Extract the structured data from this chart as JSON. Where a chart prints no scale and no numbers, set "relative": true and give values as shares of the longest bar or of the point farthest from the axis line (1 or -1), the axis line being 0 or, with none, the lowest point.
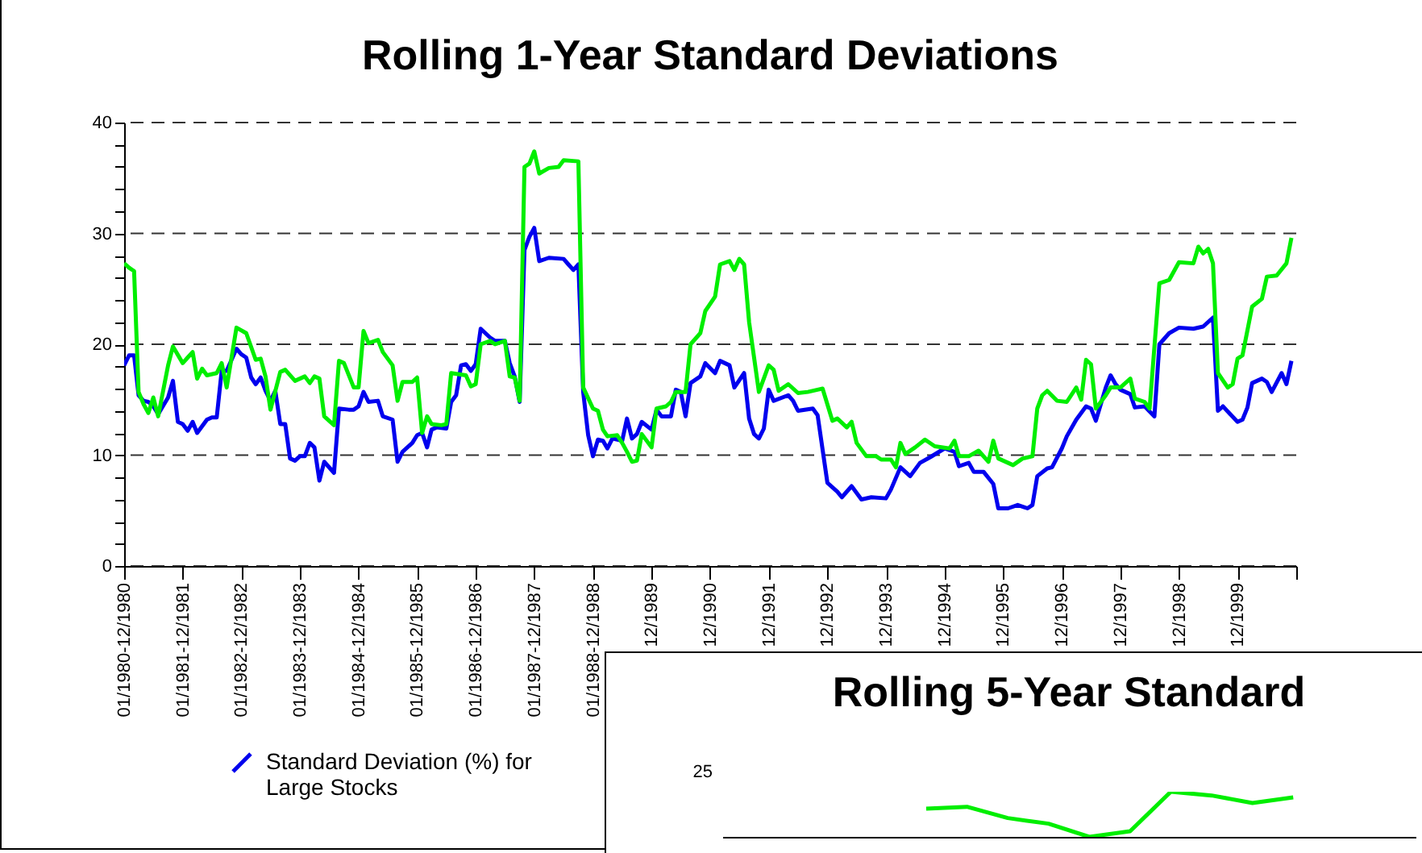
{
  "chart_data": [
    {
      "type": "line",
      "title": "Rolling 1-Year Standard Deviations",
      "xlim": [
        "1980-12",
        "2000-12"
      ],
      "xticks": [
        {
          "value": "1980-12",
          "label": "01/1980-12/1980"
        },
        {
          "value": "1981-12",
          "label": "01/1981-12/1981"
        },
        {
          "value": "1982-12",
          "label": "01/1982-12/1982"
        },
        {
          "value": "1983-12",
          "label": "01/1983-12/1983"
        },
        {
          "value": "1984-12",
          "label": "01/1984-12/1984"
        },
        {
          "value": "1985-12",
          "label": "01/1985-12/1985"
        },
        {
          "value": "1986-12",
          "label": "01/1986-12/1986"
        },
        {
          "value": "1987-12",
          "label": "01/1987-12/1987"
        },
        {
          "value": "1988-12",
          "label": "01/1988-12/1988"
        },
        {
          "value": "1989-12",
          "label": "12/1989"
        },
        {
          "value": "1990-12",
          "label": "12/1990"
        },
        {
          "value": "1991-12",
          "label": "12/1991"
        },
        {
          "value": "1992-12",
          "label": "12/1992"
        },
        {
          "value": "1993-12",
          "label": "12/1993"
        },
        {
          "value": "1994-12",
          "label": "12/1994"
        },
        {
          "value": "1995-12",
          "label": "12/1995"
        },
        {
          "value": "1996-12",
          "label": "12/1996"
        },
        {
          "value": "1997-12",
          "label": "12/1997"
        },
        {
          "value": "1998-12",
          "label": "12/1998"
        },
        {
          "value": "1999-12",
          "label": "12/1999"
        },
        {
          "value": "2000-12",
          "label": null
        }
      ],
      "ylim": [
        0,
        40
      ],
      "yticks": [
        0,
        {
          "value": 2,
          "label": null
        },
        {
          "value": 4,
          "label": null
        },
        {
          "value": 6,
          "label": null
        },
        {
          "value": 8,
          "label": null
        },
        10,
        {
          "value": 12,
          "label": null
        },
        {
          "value": 14,
          "label": null
        },
        {
          "value": 16,
          "label": null
        },
        {
          "value": 18,
          "label": null
        },
        20,
        {
          "value": 22,
          "label": null
        },
        {
          "value": 24,
          "label": null
        },
        {
          "value": 26,
          "label": null
        },
        {
          "value": 28,
          "label": null
        },
        30,
        {
          "value": 32,
          "label": null
        },
        {
          "value": 34,
          "label": null
        },
        {
          "value": 36,
          "label": null
        },
        {
          "value": 38,
          "label": null
        },
        40
      ],
      "grid": "y",
      "legend": "bottom left",
      "series": [
        {
          "name": "Standard Deviation (%) for Large Stocks",
          "color": "#0000ee",
          "x": [
            "1980-12",
            "1981-01",
            "1981-02",
            "1981-03",
            "1981-04",
            "1981-05",
            "1981-06",
            "1981-07",
            "1981-09",
            "1981-10",
            "1981-11",
            "1981-12",
            "1982-01",
            "1982-02",
            "1982-03",
            "1982-05",
            "1982-06",
            "1982-07",
            "1982-08",
            "1982-09",
            "1982-11",
            "1982-12",
            "1983-01",
            "1983-02",
            "1983-03",
            "1983-04",
            "1983-05",
            "1983-06",
            "1983-07",
            "1983-08",
            "1983-09",
            "1983-10",
            "1983-11",
            "1983-12",
            "1984-01",
            "1984-02",
            "1984-03",
            "1984-04",
            "1984-05",
            "1984-07",
            "1984-08",
            "1984-10",
            "1984-11",
            "1984-12",
            "1985-01",
            "1985-02",
            "1985-04",
            "1985-05",
            "1985-07",
            "1985-08",
            "1985-09",
            "1985-11",
            "1985-12",
            "1986-01",
            "1986-02",
            "1986-03",
            "1986-04",
            "1986-06",
            "1986-07",
            "1986-08",
            "1986-09",
            "1986-10",
            "1986-11",
            "1986-12",
            "1987-01",
            "1987-03",
            "1987-04",
            "1987-06",
            "1987-07",
            "1987-08",
            "1987-09",
            "1987-10",
            "1987-11",
            "1987-12",
            "1988-01",
            "1988-03",
            "1988-06",
            "1988-07",
            "1988-08",
            "1988-09",
            "1988-10",
            "1988-11",
            "1988-12",
            "1989-01",
            "1989-02",
            "1989-03",
            "1989-04",
            "1989-06",
            "1989-07",
            "1989-08",
            "1989-09",
            "1989-10",
            "1989-12",
            "1990-01",
            "1990-02",
            "1990-04",
            "1990-05",
            "1990-06",
            "1990-07",
            "1990-08",
            "1990-10",
            "1990-11",
            "1991-01",
            "1991-02",
            "1991-04",
            "1991-05",
            "1991-07",
            "1991-08",
            "1991-09",
            "1991-10",
            "1991-11",
            "1991-12",
            "1992-01",
            "1992-04",
            "1992-05",
            "1992-06",
            "1992-09",
            "1992-10",
            "1992-12",
            "1993-02",
            "1993-03",
            "1993-05",
            "1993-07",
            "1993-09",
            "1993-12",
            "1994-01",
            "1994-03",
            "1994-05",
            "1994-07",
            "1994-09",
            "1994-12",
            "1995-02",
            "1995-03",
            "1995-05",
            "1995-06",
            "1995-08",
            "1995-10",
            "1995-11",
            "1996-01",
            "1996-03",
            "1996-05",
            "1996-06",
            "1996-07",
            "1996-09",
            "1996-10",
            "1996-12",
            "1997-01",
            "1997-03",
            "1997-05",
            "1997-06",
            "1997-07",
            "1997-09",
            "1997-10",
            "1997-11",
            "1997-12",
            "1998-02",
            "1998-03",
            "1998-05",
            "1998-07",
            "1998-08",
            "1998-10",
            "1998-12",
            "1999-03",
            "1999-05",
            "1999-07",
            "1999-08",
            "1999-09",
            "1999-12",
            "2000-01",
            "2000-02",
            "2000-03",
            "2000-05",
            "2000-06",
            "2000-07",
            "2000-09",
            "2000-10",
            "2000-11"
          ],
          "values": [
            18.1,
            19.0,
            19.0,
            15.4,
            14.9,
            14.8,
            14.4,
            13.7,
            15.2,
            16.7,
            13.0,
            12.8,
            12.2,
            13.0,
            12.0,
            13.2,
            13.4,
            13.4,
            17.6,
            17.6,
            19.6,
            19.1,
            18.8,
            17.0,
            16.4,
            17.0,
            15.8,
            14.9,
            15.8,
            12.8,
            12.8,
            9.7,
            9.5,
            9.9,
            9.9,
            11.1,
            10.7,
            7.7,
            9.4,
            8.4,
            14.2,
            14.1,
            14.1,
            14.4,
            15.7,
            14.8,
            14.9,
            13.5,
            13.2,
            9.4,
            10.3,
            11.1,
            11.8,
            12.0,
            10.7,
            12.3,
            12.5,
            12.4,
            14.8,
            15.4,
            18.1,
            18.2,
            17.6,
            18.2,
            21.4,
            20.6,
            20.3,
            20.3,
            18.3,
            17.1,
            14.8,
            28.5,
            29.7,
            30.5,
            27.5,
            27.8,
            27.7,
            27.2,
            26.7,
            27.2,
            15.7,
            11.8,
            9.9,
            11.4,
            11.3,
            10.6,
            11.5,
            11.3,
            13.3,
            11.5,
            11.9,
            13.0,
            12.3,
            14.1,
            13.5,
            13.5,
            15.9,
            15.7,
            13.5,
            16.5,
            17.1,
            18.3,
            17.4,
            18.5,
            18.1,
            16.1,
            17.4,
            13.3,
            11.9,
            11.5,
            12.4,
            15.9,
            14.9,
            15.4,
            14.9,
            14.0,
            14.2,
            13.6,
            7.5,
            6.7,
            6.2,
            7.2,
            6.0,
            6.2,
            6.1,
            6.9,
            8.9,
            8.1,
            9.3,
            9.8,
            10.6,
            10.3,
            9.0,
            9.3,
            8.5,
            8.5,
            7.4,
            5.2,
            5.2,
            5.5,
            5.2,
            5.5,
            8.1,
            8.8,
            8.9,
            10.6,
            11.7,
            13.2,
            14.4,
            14.2,
            13.1,
            16.1,
            17.2,
            16.4,
            15.9,
            15.5,
            14.3,
            14.4,
            13.5,
            20.0,
            21.0,
            21.5,
            21.4,
            21.6,
            22.4,
            14.0,
            14.4,
            13.0,
            13.2,
            14.3,
            16.5,
            16.9,
            16.6,
            15.7,
            17.4,
            16.4,
            18.5
          ]
        },
        {
          "color": "#00ee00",
          "x": [
            "1980-12",
            "1981-01",
            "1981-02",
            "1981-03",
            "1981-04",
            "1981-05",
            "1981-06",
            "1981-07",
            "1981-09",
            "1981-10",
            "1981-12",
            "1982-01",
            "1982-02",
            "1982-03",
            "1982-04",
            "1982-05",
            "1982-07",
            "1982-08",
            "1982-09",
            "1982-11",
            "1983-01",
            "1983-03",
            "1983-04",
            "1983-05",
            "1983-06",
            "1983-08",
            "1983-09",
            "1983-11",
            "1984-01",
            "1984-02",
            "1984-03",
            "1984-04",
            "1984-05",
            "1984-07",
            "1984-08",
            "1984-09",
            "1984-11",
            "1984-12",
            "1985-01",
            "1985-02",
            "1985-04",
            "1985-05",
            "1985-07",
            "1985-08",
            "1985-09",
            "1985-11",
            "1985-12",
            "1986-01",
            "1986-02",
            "1986-03",
            "1986-05",
            "1986-06",
            "1986-07",
            "1986-10",
            "1986-11",
            "1986-12",
            "1987-01",
            "1987-03",
            "1987-04",
            "1987-06",
            "1987-07",
            "1987-08",
            "1987-09",
            "1987-10",
            "1987-11",
            "1987-12",
            "1988-01",
            "1988-03",
            "1988-05",
            "1988-06",
            "1988-09",
            "1988-10",
            "1988-12",
            "1989-01",
            "1989-02",
            "1989-03",
            "1989-05",
            "1989-06",
            "1989-07",
            "1989-08",
            "1989-09",
            "1989-10",
            "1989-12",
            "1990-01",
            "1990-03",
            "1990-04",
            "1990-05",
            "1990-07",
            "1990-08",
            "1990-10",
            "1990-11",
            "1991-01",
            "1991-02",
            "1991-04",
            "1991-05",
            "1991-06",
            "1991-07",
            "1991-08",
            "1991-10",
            "1991-12",
            "1992-01",
            "1992-02",
            "1992-04",
            "1992-06",
            "1992-08",
            "1992-11",
            "1993-01",
            "1993-02",
            "1993-04",
            "1993-05",
            "1993-06",
            "1993-08",
            "1993-10",
            "1993-11",
            "1994-01",
            "1994-02",
            "1994-03",
            "1994-04",
            "1994-06",
            "1994-08",
            "1994-10",
            "1995-01",
            "1995-02",
            "1995-03",
            "1995-05",
            "1995-07",
            "1995-09",
            "1995-10",
            "1995-11",
            "1996-02",
            "1996-04",
            "1996-06",
            "1996-07",
            "1996-08",
            "1996-09",
            "1996-11",
            "1997-01",
            "1997-03",
            "1997-04",
            "1997-05",
            "1997-06",
            "1997-07",
            "1997-09",
            "1997-10",
            "1997-12",
            "1998-02",
            "1998-03",
            "1998-05",
            "1998-06",
            "1998-08",
            "1998-10",
            "1998-12",
            "1999-03",
            "1999-04",
            "1999-05",
            "1999-06",
            "1999-07",
            "1999-08",
            "1999-10",
            "1999-11",
            "1999-12",
            "2000-01",
            "2000-03",
            "2000-05",
            "2000-06",
            "2000-08",
            "2000-10",
            "2000-11"
          ],
          "values": [
            27.3,
            26.9,
            26.6,
            15.7,
            14.6,
            13.8,
            15.2,
            13.5,
            18.1,
            19.8,
            18.3,
            18.8,
            19.3,
            16.9,
            17.8,
            17.2,
            17.4,
            18.3,
            16.1,
            21.5,
            21.0,
            18.6,
            18.7,
            17.1,
            14.1,
            17.5,
            17.7,
            16.7,
            17.1,
            16.5,
            17.1,
            16.9,
            13.5,
            12.7,
            18.5,
            18.3,
            16.1,
            16.1,
            21.2,
            20.1,
            20.4,
            19.3,
            18.1,
            14.9,
            16.6,
            16.6,
            17.0,
            12.0,
            13.5,
            12.8,
            12.7,
            12.8,
            17.4,
            17.2,
            16.2,
            16.4,
            20.0,
            20.3,
            20.0,
            20.3,
            17.1,
            17.0,
            14.9,
            36.0,
            36.3,
            37.4,
            35.4,
            35.9,
            36.0,
            36.6,
            36.5,
            16.1,
            14.2,
            14.0,
            12.3,
            11.7,
            11.8,
            11.1,
            10.3,
            9.4,
            9.5,
            11.9,
            10.7,
            14.2,
            14.4,
            14.8,
            15.7,
            15.7,
            20.0,
            21.0,
            23.0,
            24.3,
            27.2,
            27.5,
            26.7,
            27.7,
            27.2,
            22.0,
            15.7,
            18.1,
            17.7,
            15.8,
            16.4,
            15.6,
            15.7,
            16.0,
            13.1,
            13.3,
            12.5,
            13.0,
            11.1,
            9.9,
            9.9,
            9.6,
            9.6,
            8.9,
            11.1,
            10.1,
            10.7,
            11.4,
            10.8,
            10.6,
            11.3,
            9.9,
            9.9,
            10.4,
            9.4,
            11.3,
            9.7,
            9.1,
            9.7,
            9.9,
            14.2,
            15.4,
            15.8,
            14.9,
            14.8,
            16.1,
            15.0,
            18.6,
            18.2,
            14.2,
            15.4,
            16.1,
            16.1,
            16.9,
            15.1,
            14.8,
            14.2,
            25.5,
            25.8,
            27.4,
            27.3,
            28.8,
            28.2,
            28.6,
            27.3,
            17.4,
            16.1,
            16.4,
            18.7,
            19.0,
            23.4,
            24.1,
            26.1,
            26.2,
            27.3,
            29.6
          ]
        }
      ]
    },
    {
      "type": "line",
      "title": "Rolling 5-Year Standard",
      "relative": true,
      "annotations": [
        "25"
      ],
      "categories": [
        null,
        null,
        null,
        null,
        null,
        null,
        null,
        null,
        null,
        null,
        null,
        null,
        null,
        null,
        null,
        null,
        null,
        null
      ],
      "series": [
        {
          "color": "#00ee00",
          "values": [
            null,
            null,
            null,
            null,
            null,
            0.625,
            0.667,
            0.417,
            0.292,
            0,
            0.125,
            1,
            0.917,
            0.75,
            0.875,
            null,
            null,
            null
          ]
        }
      ]
    }
  ]
}
